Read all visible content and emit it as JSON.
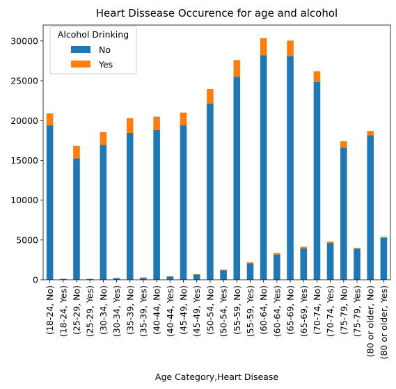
{
  "chart_data": {
    "type": "bar",
    "stacked": true,
    "title": "Heart Dissease Occurence for age and alcohol",
    "xlabel": "Age Category,Heart Disease",
    "ylabel": "",
    "ylim": [
      0,
      32000
    ],
    "yticks": [
      0,
      5000,
      10000,
      15000,
      20000,
      25000,
      30000
    ],
    "ytick_labels": [
      "0",
      "5000",
      "10000",
      "15000",
      "20000",
      "25000",
      "30000"
    ],
    "grid": false,
    "legend_position": "top-left",
    "legend_title": "Alcohol Drinking",
    "categories": [
      "(18-24, No)",
      "(18-24, Yes)",
      "(25-29, No)",
      "(25-29, Yes)",
      "(30-34, No)",
      "(30-34, Yes)",
      "(35-39, No)",
      "(35-39, Yes)",
      "(40-44, No)",
      "(40-44, Yes)",
      "(45-49, No)",
      "(45-49, Yes)",
      "(50-54, No)",
      "(50-54, Yes)",
      "(55-59, No)",
      "(55-59, Yes)",
      "(60-64, No)",
      "(60-64, Yes)",
      "(65-69, No)",
      "(65-69, Yes)",
      "(70-74, No)",
      "(70-74, Yes)",
      "(75-79, No)",
      "(75-79, Yes)",
      "(80 or older, No)",
      "(80 or older, Yes)"
    ],
    "series": [
      {
        "name": "No",
        "color": "#1f77b4",
        "values": [
          19400,
          120,
          15250,
          110,
          16950,
          200,
          18450,
          250,
          18800,
          400,
          19400,
          650,
          22150,
          1200,
          25500,
          2050,
          28200,
          3150,
          28100,
          3950,
          24850,
          4650,
          16600,
          3900,
          18150,
          5250
        ]
      },
      {
        "name": "Yes",
        "color": "#ff7f0e",
        "values": [
          1500,
          10,
          1550,
          10,
          1600,
          20,
          1850,
          40,
          1700,
          40,
          1600,
          50,
          1800,
          70,
          2100,
          150,
          2150,
          200,
          1950,
          200,
          1350,
          150,
          800,
          100,
          550,
          150
        ]
      }
    ]
  }
}
